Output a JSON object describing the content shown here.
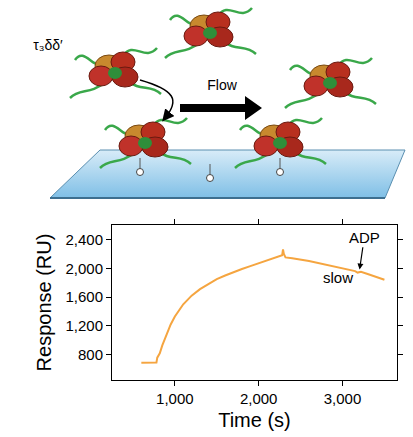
{
  "diagram": {
    "complex_label": "τ₃δδ′",
    "flow_label": "Flow"
  },
  "chart_data": {
    "type": "line",
    "color": "#f5a540",
    "xlabel": "Time (s)",
    "ylabel": "Response (RU)",
    "x": [
      600,
      700,
      780,
      790,
      800,
      820,
      850,
      900,
      950,
      1000,
      1100,
      1200,
      1300,
      1400,
      1500,
      1600,
      1700,
      1800,
      1900,
      2000,
      2100,
      2200,
      2280,
      2290,
      2300,
      2320,
      2400,
      2600,
      2800,
      3000,
      3150,
      3180,
      3220,
      3300,
      3400,
      3500
    ],
    "values": [
      690,
      690,
      692,
      760,
      780,
      820,
      930,
      1080,
      1220,
      1330,
      1500,
      1620,
      1710,
      1780,
      1850,
      1900,
      1950,
      1990,
      2030,
      2070,
      2110,
      2150,
      2180,
      2260,
      2200,
      2150,
      2140,
      2100,
      2050,
      2000,
      1960,
      1940,
      1950,
      1920,
      1880,
      1840
    ],
    "xlim": [
      250,
      3650
    ],
    "ylim": [
      450,
      2600
    ],
    "xticks": [
      {
        "value": 1000,
        "label": "1,000"
      },
      {
        "value": 2000,
        "label": "2,000"
      },
      {
        "value": 3000,
        "label": "3,000"
      }
    ],
    "yticks": [
      800,
      {
        "value": 1200,
        "label": "1,200"
      },
      {
        "value": 1600,
        "label": "1,600"
      },
      {
        "value": 2000,
        "label": "2,000"
      },
      {
        "value": 2400,
        "label": "2,400"
      }
    ],
    "grid": false,
    "annotations": [
      {
        "text": "slow",
        "x": 2950,
        "y": 1870
      },
      {
        "text": "ADP",
        "x": 3260,
        "y": 2430,
        "points_to": [
          3200,
          1955
        ]
      }
    ]
  }
}
